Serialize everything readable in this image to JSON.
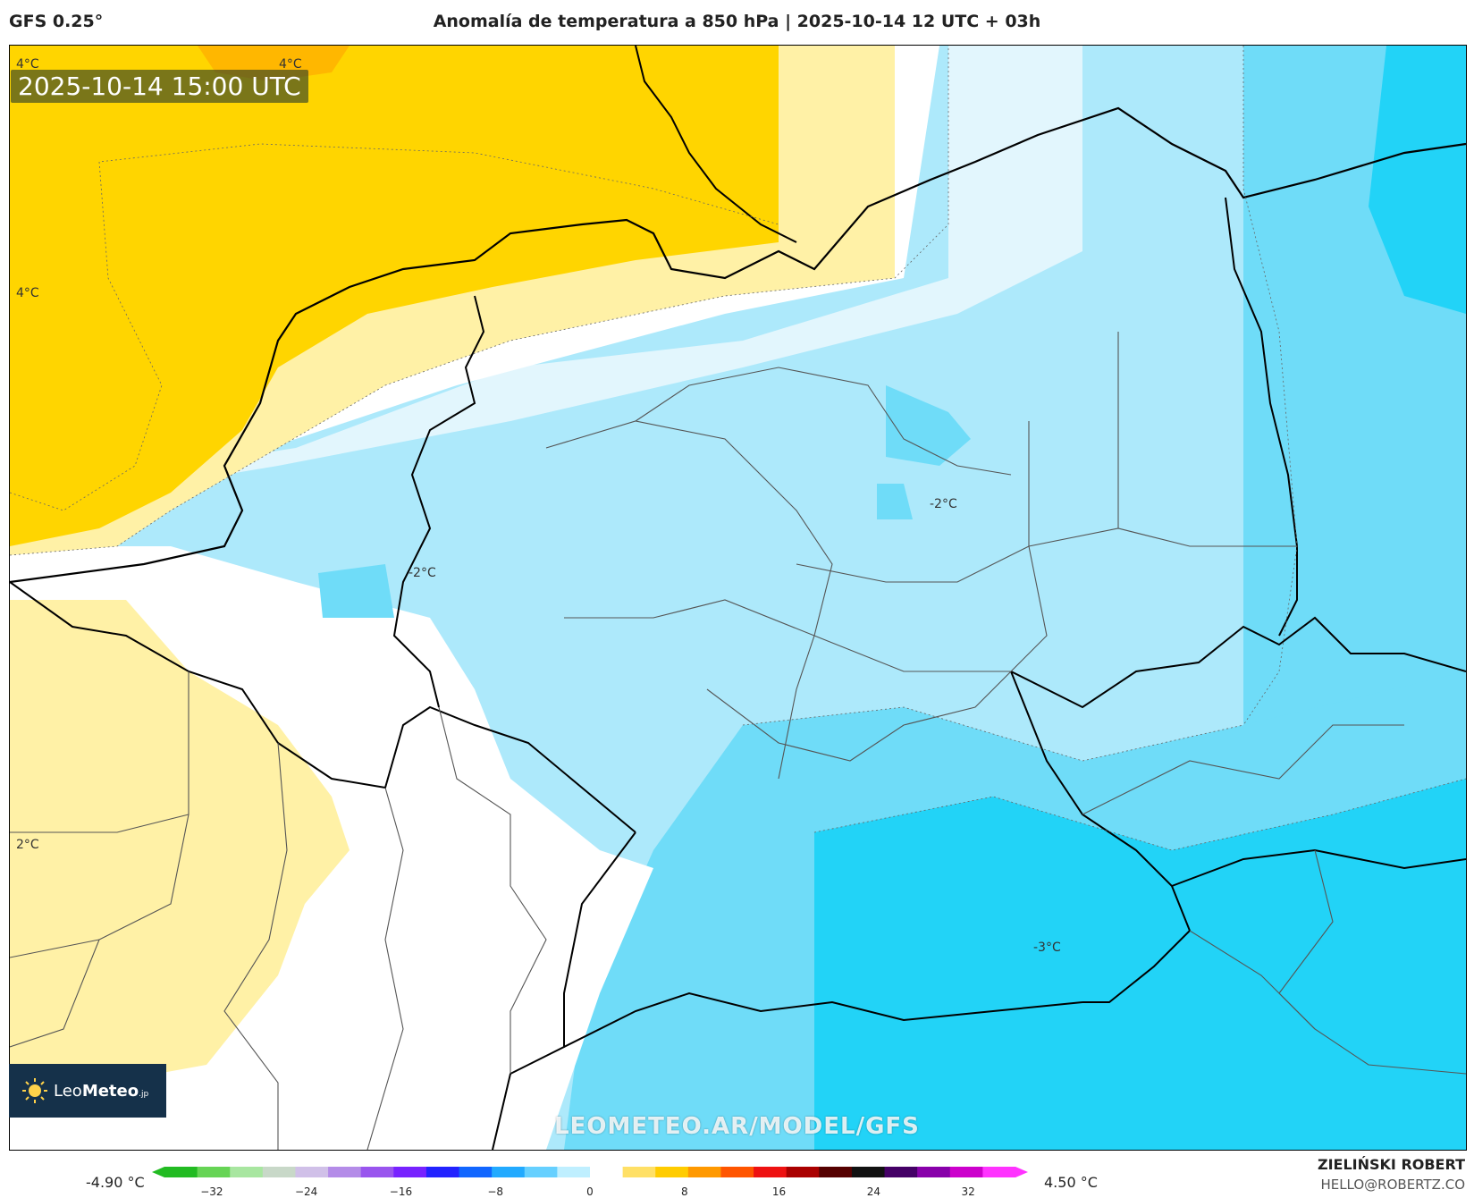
{
  "header": {
    "model": "GFS 0.25°",
    "title": "Anomalía de temperatura a 850 hPa | 2025-10-14 12 UTC + 03h"
  },
  "map": {
    "timestamp": "2025-10-14 15:00 UTC",
    "contour_labels": [
      "4°C",
      "4°C",
      "4°C",
      "2°C",
      "-2°C",
      "-2°C",
      "-3°C"
    ],
    "colors": {
      "warm_strong": "#ffd500",
      "warm_light": "#fff1a6",
      "neutral": "#ffffff",
      "cool_light": "#e2f6fd",
      "cool": "#ade9fb",
      "cool_mid": "#6fdcf8",
      "cool_strong": "#22d3f7",
      "borders": "#555555",
      "coast": "#000000"
    }
  },
  "logo": {
    "name_light": "Leo",
    "name_bold": "Meteo",
    "suffix": ".jp"
  },
  "watermark": "LEOMETEO.AR/MODEL/GFS",
  "legend": {
    "min_label": "-4.90 °C",
    "max_label": "4.50 °C",
    "ticks": [
      "−32",
      "−24",
      "−16",
      "−8",
      "0",
      "8",
      "16",
      "24",
      "32"
    ],
    "tick_values": [
      -32,
      -24,
      -16,
      -8,
      0,
      8,
      16,
      24,
      32
    ],
    "range": [
      -36,
      36
    ],
    "palette": [
      "#22bb22",
      "#66d455",
      "#a8e6a0",
      "#c8d8c8",
      "#d0c0e8",
      "#b48ce8",
      "#9955ee",
      "#7722ff",
      "#2222ff",
      "#1166ff",
      "#22aaff",
      "#66d0ff",
      "#bfefff",
      "#ffffff",
      "#ffe066",
      "#ffcc00",
      "#ff9900",
      "#ff5500",
      "#ee1111",
      "#aa0000",
      "#550000",
      "#111111",
      "#440066",
      "#8800aa",
      "#cc00cc",
      "#ff33ff"
    ]
  },
  "credits": {
    "author": "ZIELIŃSKI ROBERT",
    "email": "HELLO@ROBERTZ.CO"
  }
}
